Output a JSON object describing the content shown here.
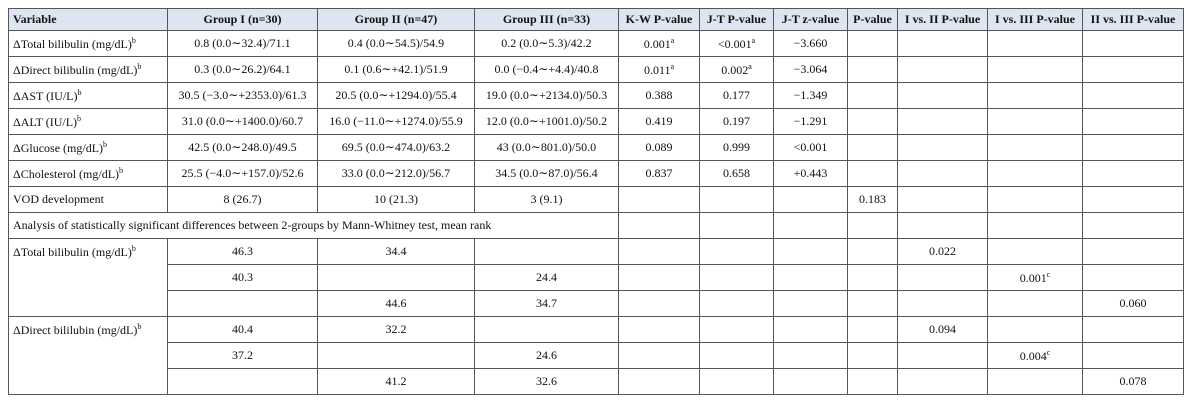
{
  "table": {
    "header": [
      "Variable",
      "Group I (n=30)",
      "Group II (n=47)",
      "Group III (n=33)",
      "K-W P-value",
      "J-T P-value",
      "J-T z-value",
      "P-value",
      "I vs. II P-value",
      "I vs. III P-value",
      "II vs. III P-value"
    ],
    "rows": [
      [
        {
          "text": "ΔTotal bilibulin (mg/dL)",
          "sup": "b"
        },
        "0.8 (0.0∼32.4)/71.1",
        "0.4 (0.0∼54.5)/54.9",
        "0.2 (0.0∼5.3)/42.2",
        {
          "text": "0.001",
          "sup": "a"
        },
        {
          "text": "<0.001",
          "sup": "a"
        },
        "−3.660",
        null,
        null,
        null,
        null
      ],
      [
        {
          "text": "ΔDirect bilibulin (mg/dL)",
          "sup": "b"
        },
        "0.3 (0.0∼26.2)/64.1",
        "0.1 (0.6∼+42.1)/51.9",
        "0.0 (−0.4∼+4.4)/40.8",
        {
          "text": "0.011",
          "sup": "a"
        },
        {
          "text": "0.002",
          "sup": "a"
        },
        "−3.064",
        null,
        null,
        null,
        null
      ],
      [
        {
          "text": "ΔAST (IU/L)",
          "sup": "b"
        },
        "30.5 (−3.0∼+2353.0)/61.3",
        "20.5 (0.0∼+1294.0)/55.4",
        "19.0 (0.0∼+2134.0)/50.3",
        "0.388",
        "0.177",
        "−1.349",
        null,
        null,
        null,
        null
      ],
      [
        {
          "text": "ΔALT (IU/L)",
          "sup": "b"
        },
        "31.0 (0.0∼+1400.0)/60.7",
        "16.0 (−11.0∼+1274.0)/55.9",
        "12.0 (0.0∼+1001.0)/50.2",
        "0.419",
        "0.197",
        "−1.291",
        null,
        null,
        null,
        null
      ],
      [
        {
          "text": "ΔGlucose (mg/dL)",
          "sup": "b"
        },
        "42.5 (0.0∼248.0)/49.5",
        "69.5 (0.0∼474.0)/63.2",
        "43 (0.0∼801.0)/50.0",
        "0.089",
        "0.999",
        "<0.001",
        null,
        null,
        null,
        null
      ],
      [
        {
          "text": "ΔCholesterol (mg/dL)",
          "sup": "b"
        },
        "25.5 (−4.0∼+157.0)/52.6",
        "33.0 (0.0∼212.0)/56.7",
        "34.5 (0.0∼87.0)/56.4",
        "0.837",
        "0.658",
        "+0.443",
        null,
        null,
        null,
        null
      ],
      [
        "VOD development",
        "8 (26.7)",
        "10 (21.3)",
        "3 (9.1)",
        null,
        null,
        null,
        "0.183",
        null,
        null,
        null
      ]
    ],
    "analysis_note": "Analysis of statistically significant differences between 2-groups by Mann-Whitney test, mean rank",
    "pairwise": [
      {
        "variable": {
          "text": "ΔTotal bilibulin (mg/dL)",
          "sup": "b"
        },
        "rows": [
          [
            "46.3",
            "34.4",
            null,
            null,
            null,
            null,
            null,
            "0.022",
            null,
            null
          ],
          [
            "40.3",
            null,
            "24.4",
            null,
            null,
            null,
            null,
            null,
            {
              "text": "0.001",
              "sup": "c"
            },
            null
          ],
          [
            null,
            "44.6",
            "34.7",
            null,
            null,
            null,
            null,
            null,
            null,
            "0.060"
          ]
        ]
      },
      {
        "variable": {
          "text": "ΔDirect bililubin (mg/dL)",
          "sup": "b"
        },
        "rows": [
          [
            "40.4",
            "32.2",
            null,
            null,
            null,
            null,
            null,
            "0.094",
            null,
            null
          ],
          [
            "37.2",
            null,
            "24.6",
            null,
            null,
            null,
            null,
            null,
            {
              "text": "0.004",
              "sup": "c"
            },
            null
          ],
          [
            null,
            "41.2",
            "32.6",
            null,
            null,
            null,
            null,
            null,
            null,
            "0.078"
          ]
        ]
      }
    ]
  }
}
